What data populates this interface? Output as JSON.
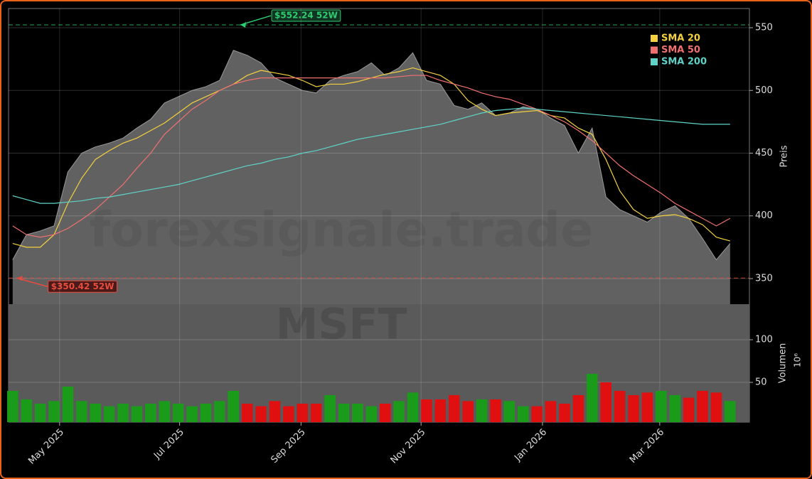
{
  "chart_data": [
    {
      "type": "line",
      "watermark": "forexsignale.trade",
      "ylabel": "Preis",
      "categories": [
        null,
        null,
        null,
        null,
        null,
        null,
        null,
        null,
        null,
        null,
        null,
        null,
        null,
        null,
        null,
        null,
        null,
        null,
        null,
        null,
        null,
        null,
        null,
        null,
        null,
        null,
        null,
        null,
        null,
        null,
        null,
        null,
        null,
        null,
        null,
        null,
        null,
        null,
        null,
        null,
        null,
        null,
        null,
        null,
        null,
        null,
        null,
        null,
        null,
        null,
        null,
        null,
        null
      ],
      "xlim": [
        -0.3,
        53.4
      ],
      "ylim": [
        329.6,
        565.3
      ],
      "yticks": [
        350,
        400,
        450,
        500,
        550
      ],
      "grid": true,
      "legend": "upper right",
      "area_color": "#666666",
      "line_color": "#999999",
      "series": [
        {
          "values": [
            365,
            385,
            388,
            392,
            435,
            450,
            455,
            458,
            462,
            470,
            477,
            490,
            495,
            500,
            503,
            508,
            532,
            528,
            522,
            510,
            505,
            500,
            498,
            508,
            512,
            515,
            522,
            512,
            518,
            530,
            508,
            505,
            488,
            485,
            490,
            480,
            482,
            487,
            485,
            478,
            472,
            450,
            470,
            415,
            405,
            400,
            395,
            403,
            408,
            398,
            382,
            365,
            378
          ]
        },
        {
          "name": "SMA 20",
          "color": "#f4d03f",
          "values": [
            378,
            375,
            375,
            385,
            410,
            430,
            445,
            452,
            458,
            462,
            468,
            474,
            482,
            490,
            495,
            500,
            505,
            512,
            516,
            514,
            512,
            508,
            503,
            505,
            505,
            507,
            510,
            513,
            515,
            518,
            515,
            512,
            505,
            492,
            485,
            480,
            482,
            483,
            484,
            480,
            478,
            470,
            465,
            445,
            420,
            405,
            398,
            400,
            401,
            398,
            393,
            383,
            380
          ]
        },
        {
          "name": "SMA 50",
          "color": "#f07070",
          "values": [
            392,
            385,
            383,
            385,
            390,
            397,
            405,
            415,
            425,
            438,
            450,
            465,
            475,
            485,
            492,
            500,
            505,
            508,
            510,
            510,
            510,
            510,
            510,
            510,
            510,
            510,
            510,
            510,
            511,
            512,
            512,
            508,
            505,
            502,
            498,
            495,
            493,
            489,
            485,
            480,
            475,
            468,
            460,
            450,
            440,
            432,
            425,
            418,
            410,
            404,
            398,
            392,
            398
          ]
        },
        {
          "name": "SMA 200",
          "color": "#5fd3c8",
          "values": [
            416,
            413,
            410,
            410,
            411,
            412,
            414,
            415,
            417,
            419,
            421,
            423,
            425,
            428,
            431,
            434,
            437,
            440,
            442,
            445,
            447,
            450,
            452,
            455,
            458,
            461,
            463,
            465,
            467,
            469,
            471,
            473,
            476,
            479,
            482,
            484,
            485,
            486,
            485,
            484,
            483,
            482,
            481,
            480,
            479,
            478,
            477,
            476,
            475,
            474,
            473,
            473,
            473
          ]
        }
      ],
      "annotations": [
        {
          "text": "$552.24 52W",
          "value": 552.24,
          "x": 16.4,
          "color": "#2ecc71"
        },
        {
          "text": "$350.42 52W",
          "value": 350.42,
          "x": 0.2,
          "color": "#e74c3c"
        }
      ]
    },
    {
      "type": "bar",
      "watermark": "MSFT",
      "ylabel": "Volumen",
      "offset_label": "10⁶",
      "categories": [
        null,
        null,
        null,
        null,
        null,
        null,
        null,
        null,
        null,
        null,
        null,
        null,
        null,
        null,
        null,
        null,
        null,
        null,
        null,
        null,
        null,
        null,
        null,
        null,
        null,
        null,
        null,
        null,
        null,
        null,
        null,
        null,
        null,
        null,
        null,
        null,
        null,
        null,
        null,
        null,
        null,
        null,
        null,
        null,
        null,
        null,
        null,
        null,
        null,
        null,
        null,
        null,
        null
      ],
      "values": [
        40,
        30,
        25,
        28,
        45,
        28,
        25,
        22,
        25,
        22,
        25,
        28,
        25,
        22,
        25,
        28,
        40,
        25,
        22,
        28,
        22,
        25,
        25,
        35,
        25,
        25,
        22,
        25,
        28,
        38,
        30,
        30,
        35,
        28,
        30,
        30,
        28,
        22,
        22,
        28,
        25,
        35,
        60,
        50,
        40,
        35,
        38,
        40,
        35,
        32,
        40,
        38,
        28
      ],
      "up_color": "#1a9c1a",
      "down_color": "#e01010",
      "xlim": [
        -0.3,
        53.4
      ],
      "ylim": [
        3.3,
        141.7
      ],
      "yticks": [
        50,
        100
      ],
      "xticks": [
        {
          "value": 3.4,
          "label": "May 2025"
        },
        {
          "value": 12.1,
          "label": "Jul 2025"
        },
        {
          "value": 20.9,
          "label": "Sep 2025"
        },
        {
          "value": 29.6,
          "label": "Nov 2025"
        },
        {
          "value": 38.4,
          "label": "Jan 2026"
        },
        {
          "value": 46.9,
          "label": "Mar 2026"
        }
      ],
      "grid": true
    }
  ]
}
